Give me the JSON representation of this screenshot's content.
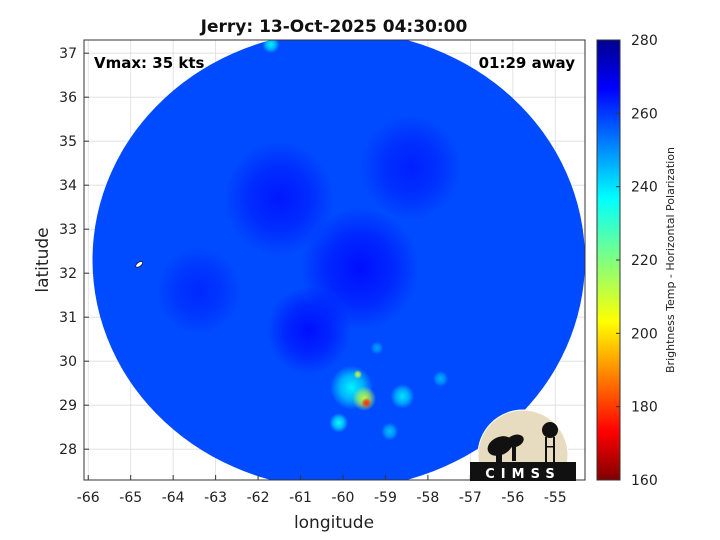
{
  "chart_data": {
    "type": "heatmap",
    "title": "Jerry: 13-Oct-2025 04:30:00",
    "xlabel": "longitude",
    "ylabel": "latitude",
    "xlim": [
      -66.1,
      -54.3
    ],
    "ylim": [
      27.3,
      37.3
    ],
    "xticks": [
      -66,
      -65,
      -64,
      -63,
      -62,
      -61,
      -60,
      -59,
      -58,
      -57,
      -56,
      -55
    ],
    "yticks": [
      28,
      29,
      30,
      31,
      32,
      33,
      34,
      35,
      36,
      37
    ],
    "grid": true,
    "annotations": {
      "vmax": "Vmax: 35 kts",
      "time_away": "01:29 away"
    },
    "swath": {
      "center": [
        -60.1,
        32.3
      ],
      "radius_deg_lon": 5.8,
      "radius_deg_lat": 5.2
    },
    "background_bt": 258,
    "features": [
      {
        "lon": -59.6,
        "lat": 32.1,
        "bt": 265,
        "spread": 1.4
      },
      {
        "lon": -61.5,
        "lat": 33.7,
        "bt": 264,
        "spread": 1.3
      },
      {
        "lon": -58.4,
        "lat": 34.4,
        "bt": 263,
        "spread": 1.2
      },
      {
        "lon": -60.8,
        "lat": 30.7,
        "bt": 265,
        "spread": 1.0
      },
      {
        "lon": -63.4,
        "lat": 31.6,
        "bt": 262,
        "spread": 1.0
      },
      {
        "lon": -59.8,
        "lat": 29.4,
        "bt": 238,
        "spread": 0.5
      },
      {
        "lon": -59.5,
        "lat": 29.15,
        "bt": 212,
        "spread": 0.28
      },
      {
        "lon": -59.45,
        "lat": 29.05,
        "bt": 178,
        "spread": 0.12
      },
      {
        "lon": -59.65,
        "lat": 29.7,
        "bt": 210,
        "spread": 0.1
      },
      {
        "lon": -58.6,
        "lat": 29.2,
        "bt": 240,
        "spread": 0.28
      },
      {
        "lon": -60.1,
        "lat": 28.6,
        "bt": 236,
        "spread": 0.22
      },
      {
        "lon": -58.9,
        "lat": 28.4,
        "bt": 244,
        "spread": 0.2
      },
      {
        "lon": -57.7,
        "lat": 29.6,
        "bt": 246,
        "spread": 0.18
      },
      {
        "lon": -59.2,
        "lat": 30.3,
        "bt": 248,
        "spread": 0.15
      },
      {
        "lon": -61.7,
        "lat": 37.2,
        "bt": 238,
        "spread": 0.2
      }
    ],
    "colorbar": {
      "label": "Brightness Temp - Horizontal Polarization",
      "min": 160,
      "max": 280,
      "ticks": [
        160,
        180,
        200,
        220,
        240,
        260,
        280
      ],
      "colormap": "jet"
    }
  },
  "logo": {
    "text": "CIMSS"
  }
}
